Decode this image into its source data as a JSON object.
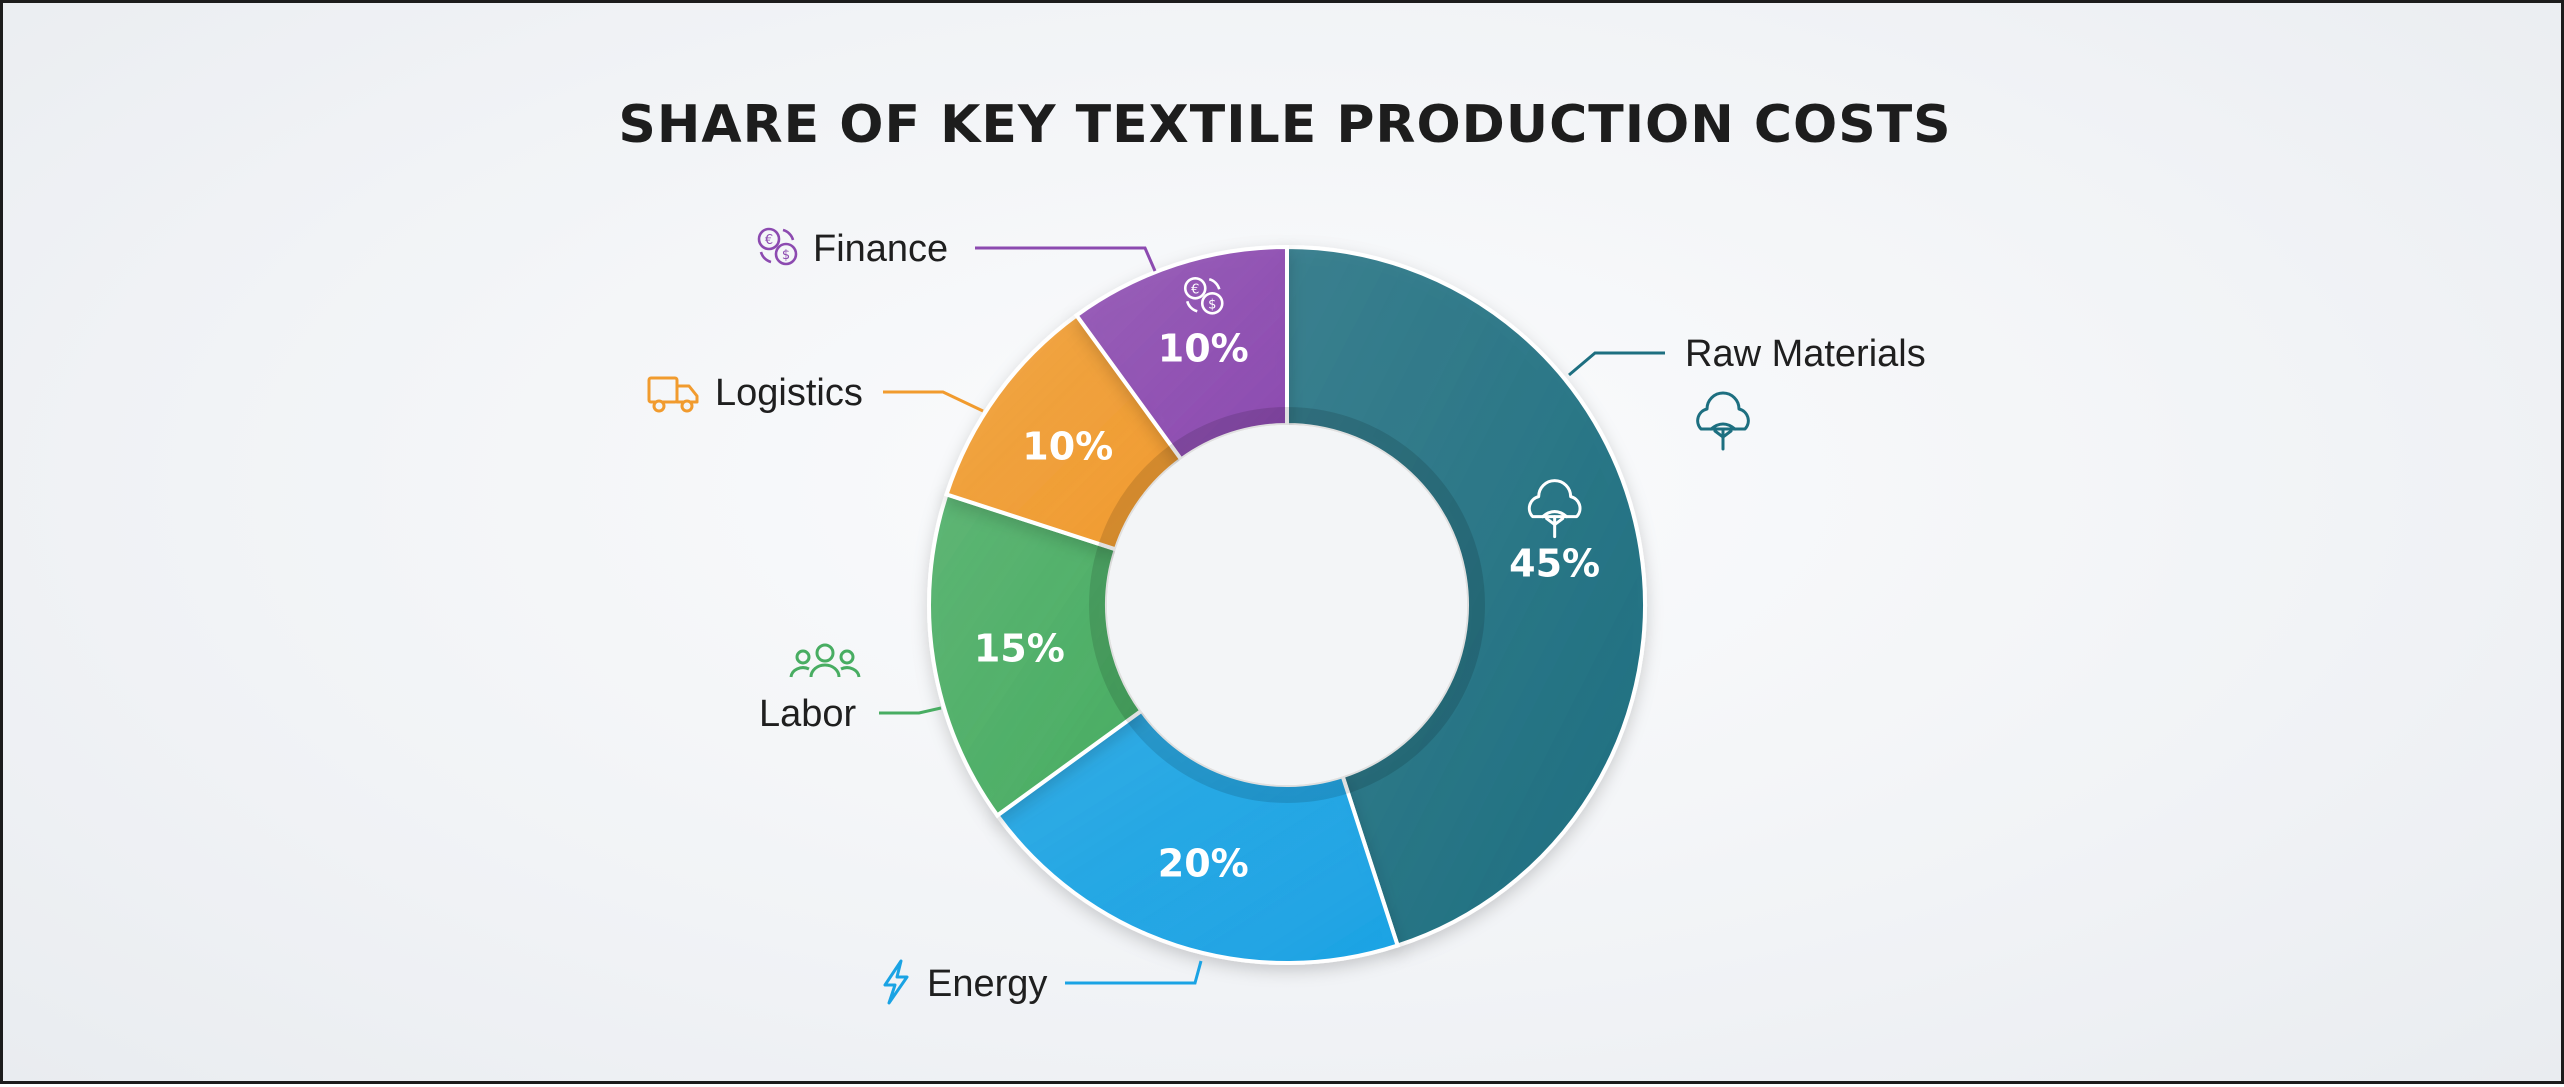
{
  "chart_data": {
    "type": "pie",
    "variant": "donut",
    "title": "SHARE OF KEY TEXTILE PRODUCTION COSTS",
    "slices": [
      {
        "name": "Raw Materials",
        "value": 45,
        "label": "45%",
        "color": "#1d6f80",
        "icon": "cotton-boll-icon"
      },
      {
        "name": "Energy",
        "value": 20,
        "label": "20%",
        "color": "#1aa3e4",
        "icon": "lightning-bolt-icon"
      },
      {
        "name": "Labor",
        "value": 15,
        "label": "15%",
        "color": "#48ad62",
        "icon": "people-group-icon"
      },
      {
        "name": "Logistics",
        "value": 10,
        "label": "10%",
        "color": "#f19b2e",
        "icon": "delivery-truck-icon"
      },
      {
        "name": "Finance",
        "value": 10,
        "label": "10%",
        "color": "#8c4ab0",
        "icon": "currency-exchange-icon"
      }
    ],
    "start_angle": "12 o'clock",
    "direction": "clockwise",
    "labels_position": "outside-with-leader-lines"
  }
}
